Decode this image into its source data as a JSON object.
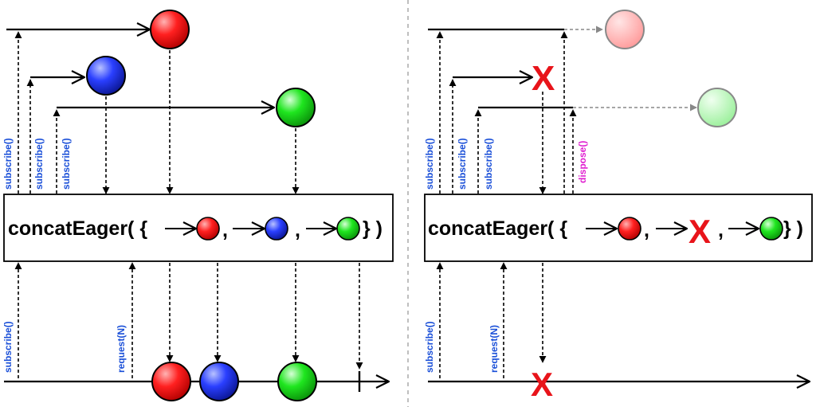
{
  "left_panel": {
    "operator_prefix": "concatEager( {",
    "sep1": ",",
    "sep2": ",",
    "operator_suffix": "} )",
    "subscribe_labels": [
      "subscribe()",
      "subscribe()",
      "subscribe()"
    ],
    "bottom_subscribe": "subscribe()",
    "request": "request(N)"
  },
  "right_panel": {
    "operator_prefix": "concatEager( {",
    "sep1": ",",
    "sep2": ",",
    "operator_suffix": "} )",
    "subscribe_labels": [
      "subscribe()",
      "subscribe()",
      "subscribe()"
    ],
    "dispose": "dispose()",
    "bottom_subscribe": "subscribe()",
    "request": "request(N)",
    "error_mark": "X"
  },
  "colors": {
    "red": "#ff2020",
    "blue": "#2a3fff",
    "green": "#1fe61f",
    "label_blue": "#1a4fd8",
    "dispose_magenta": "#e020d0",
    "error_red": "#e8141a"
  }
}
